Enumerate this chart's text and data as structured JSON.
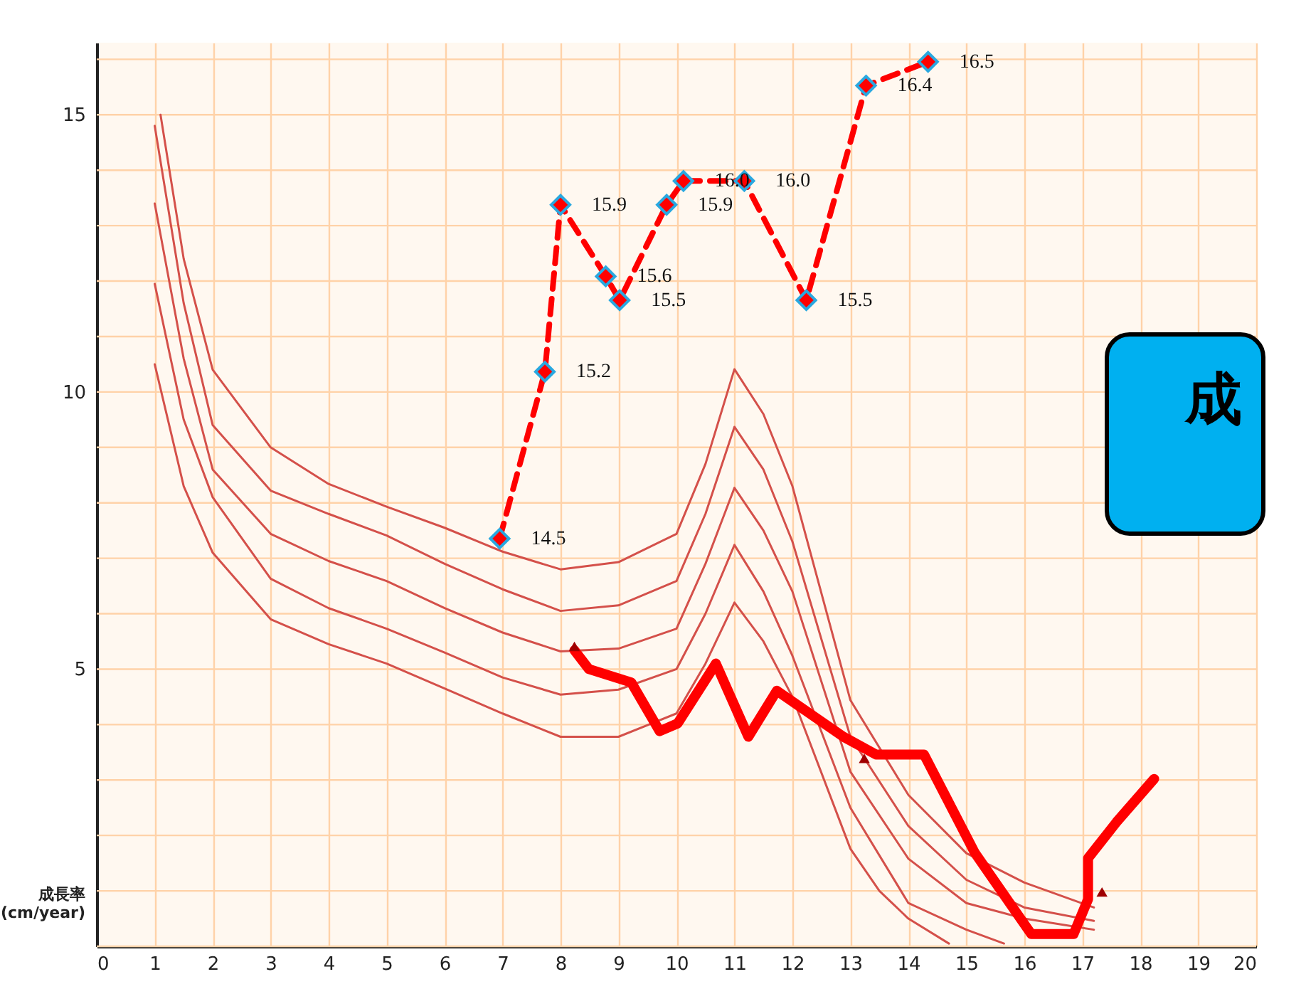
{
  "chart_data": {
    "type": "line",
    "ylabel": "成長率\n(cm/year)",
    "xlim": [
      0,
      20
    ],
    "ylim": [
      0,
      16.3
    ],
    "y2lim": [
      12.79,
      16.58
    ],
    "xticks": [
      0,
      1,
      2,
      3,
      4,
      5,
      6,
      7,
      8,
      9,
      10,
      11,
      12,
      13,
      14,
      15,
      16,
      17,
      18,
      19,
      20
    ],
    "yticks": [
      {
        "value": 0,
        "label": null
      },
      {
        "value": 1,
        "label": null
      },
      {
        "value": 2,
        "label": null
      },
      {
        "value": 3,
        "label": null
      },
      {
        "value": 4,
        "label": null
      },
      5,
      {
        "value": 6,
        "label": null
      },
      {
        "value": 7,
        "label": null
      },
      {
        "value": 8,
        "label": null
      },
      {
        "value": 9,
        "label": null
      },
      10,
      {
        "value": 11,
        "label": null
      },
      {
        "value": 12,
        "label": null
      },
      {
        "value": 13,
        "label": null
      },
      {
        "value": 14,
        "label": null
      },
      15,
      {
        "value": 16,
        "label": null
      }
    ],
    "grid": true,
    "annotations": [
      "成"
    ],
    "series": [
      {
        "color": "#d4504a",
        "x": [
          1.1,
          1.5,
          2,
          3,
          4,
          5,
          6,
          7,
          8,
          9,
          10,
          10.5,
          11,
          11.5,
          12,
          13,
          14,
          15,
          16,
          17.2
        ],
        "values": [
          15.0,
          12.4,
          10.4,
          9.0,
          8.34,
          7.93,
          7.55,
          7.12,
          6.8,
          6.93,
          7.44,
          8.7,
          10.41,
          9.6,
          8.3,
          4.44,
          2.73,
          1.68,
          1.15,
          0.7
        ]
      },
      {
        "color": "#d4504a",
        "x": [
          1.0,
          1.5,
          2,
          3,
          4,
          5,
          6,
          7,
          8,
          9,
          10,
          10.5,
          11,
          11.5,
          12,
          13,
          14,
          15,
          16,
          17.2
        ],
        "values": [
          14.8,
          11.6,
          9.4,
          8.22,
          7.8,
          7.41,
          6.9,
          6.44,
          6.05,
          6.15,
          6.59,
          7.8,
          9.37,
          8.6,
          7.3,
          3.78,
          2.17,
          1.2,
          0.7,
          0.46
        ]
      },
      {
        "color": "#d4504a",
        "x": [
          1.0,
          1.5,
          2,
          3,
          4,
          5,
          6,
          7,
          8,
          9,
          10,
          10.5,
          11,
          11.5,
          12,
          13,
          14,
          15,
          16,
          17.2
        ],
        "values": [
          13.4,
          10.6,
          8.6,
          7.44,
          6.95,
          6.59,
          6.1,
          5.66,
          5.32,
          5.37,
          5.73,
          6.9,
          8.27,
          7.5,
          6.4,
          3.15,
          1.58,
          0.78,
          0.5,
          0.3
        ]
      },
      {
        "color": "#d4504a",
        "x": [
          1.0,
          1.5,
          2,
          3,
          4,
          5,
          6,
          7,
          8,
          9,
          10,
          10.5,
          11,
          11.5,
          12,
          13,
          14,
          15,
          15.65
        ],
        "values": [
          11.95,
          9.5,
          8.1,
          6.63,
          6.1,
          5.73,
          5.3,
          4.85,
          4.54,
          4.63,
          5.0,
          6.0,
          7.24,
          6.4,
          5.24,
          2.5,
          0.78,
          0.3,
          0.05
        ]
      },
      {
        "color": "#d4504a",
        "x": [
          1.0,
          1.5,
          2,
          3,
          4,
          5,
          6,
          7,
          8,
          9,
          10,
          10.5,
          11,
          11.5,
          12,
          13,
          13.5,
          14,
          14.7
        ],
        "values": [
          10.5,
          8.3,
          7.1,
          5.9,
          5.45,
          5.1,
          4.65,
          4.2,
          3.78,
          3.78,
          4.2,
          5.1,
          6.2,
          5.5,
          4.5,
          1.76,
          1.0,
          0.5,
          0.05
        ]
      },
      {
        "color": "#ff0000",
        "x": [
          8.24,
          8.49,
          9.22,
          9.71,
          10.02,
          10.68,
          11.24,
          11.73,
          12.88,
          13.44,
          14.27,
          15.15,
          16.12,
          16.85,
          17.1,
          17.1,
          17.59,
          18.24
        ],
        "values": [
          5.34,
          5.0,
          4.76,
          3.88,
          4.02,
          5.1,
          3.78,
          4.61,
          3.78,
          3.46,
          3.46,
          1.68,
          0.22,
          0.22,
          0.85,
          1.59,
          2.24,
          3.02
        ]
      },
      {
        "type": "scatter",
        "color": "#a00000",
        "marker": "triangle",
        "x": [
          8.24,
          13.24,
          17.34
        ],
        "values": [
          5.41,
          3.39,
          0.98
        ]
      },
      {
        "color": "#ff0000",
        "line_style": "dashed",
        "marker": "diamond",
        "axis": "y2",
        "value_labels": [
          "14.5",
          "15.2",
          "15.9",
          "15.6",
          "15.5",
          "15.9",
          "16.0",
          "16.0",
          "15.5",
          "16.4",
          "16.5"
        ],
        "x": [
          6.95,
          7.73,
          8.0,
          8.78,
          9.02,
          9.83,
          10.12,
          11.17,
          12.24,
          13.27,
          14.34
        ],
        "values": [
          14.5,
          15.2,
          15.9,
          15.6,
          15.5,
          15.9,
          16.0,
          16.0,
          15.5,
          16.4,
          16.5
        ]
      }
    ]
  }
}
